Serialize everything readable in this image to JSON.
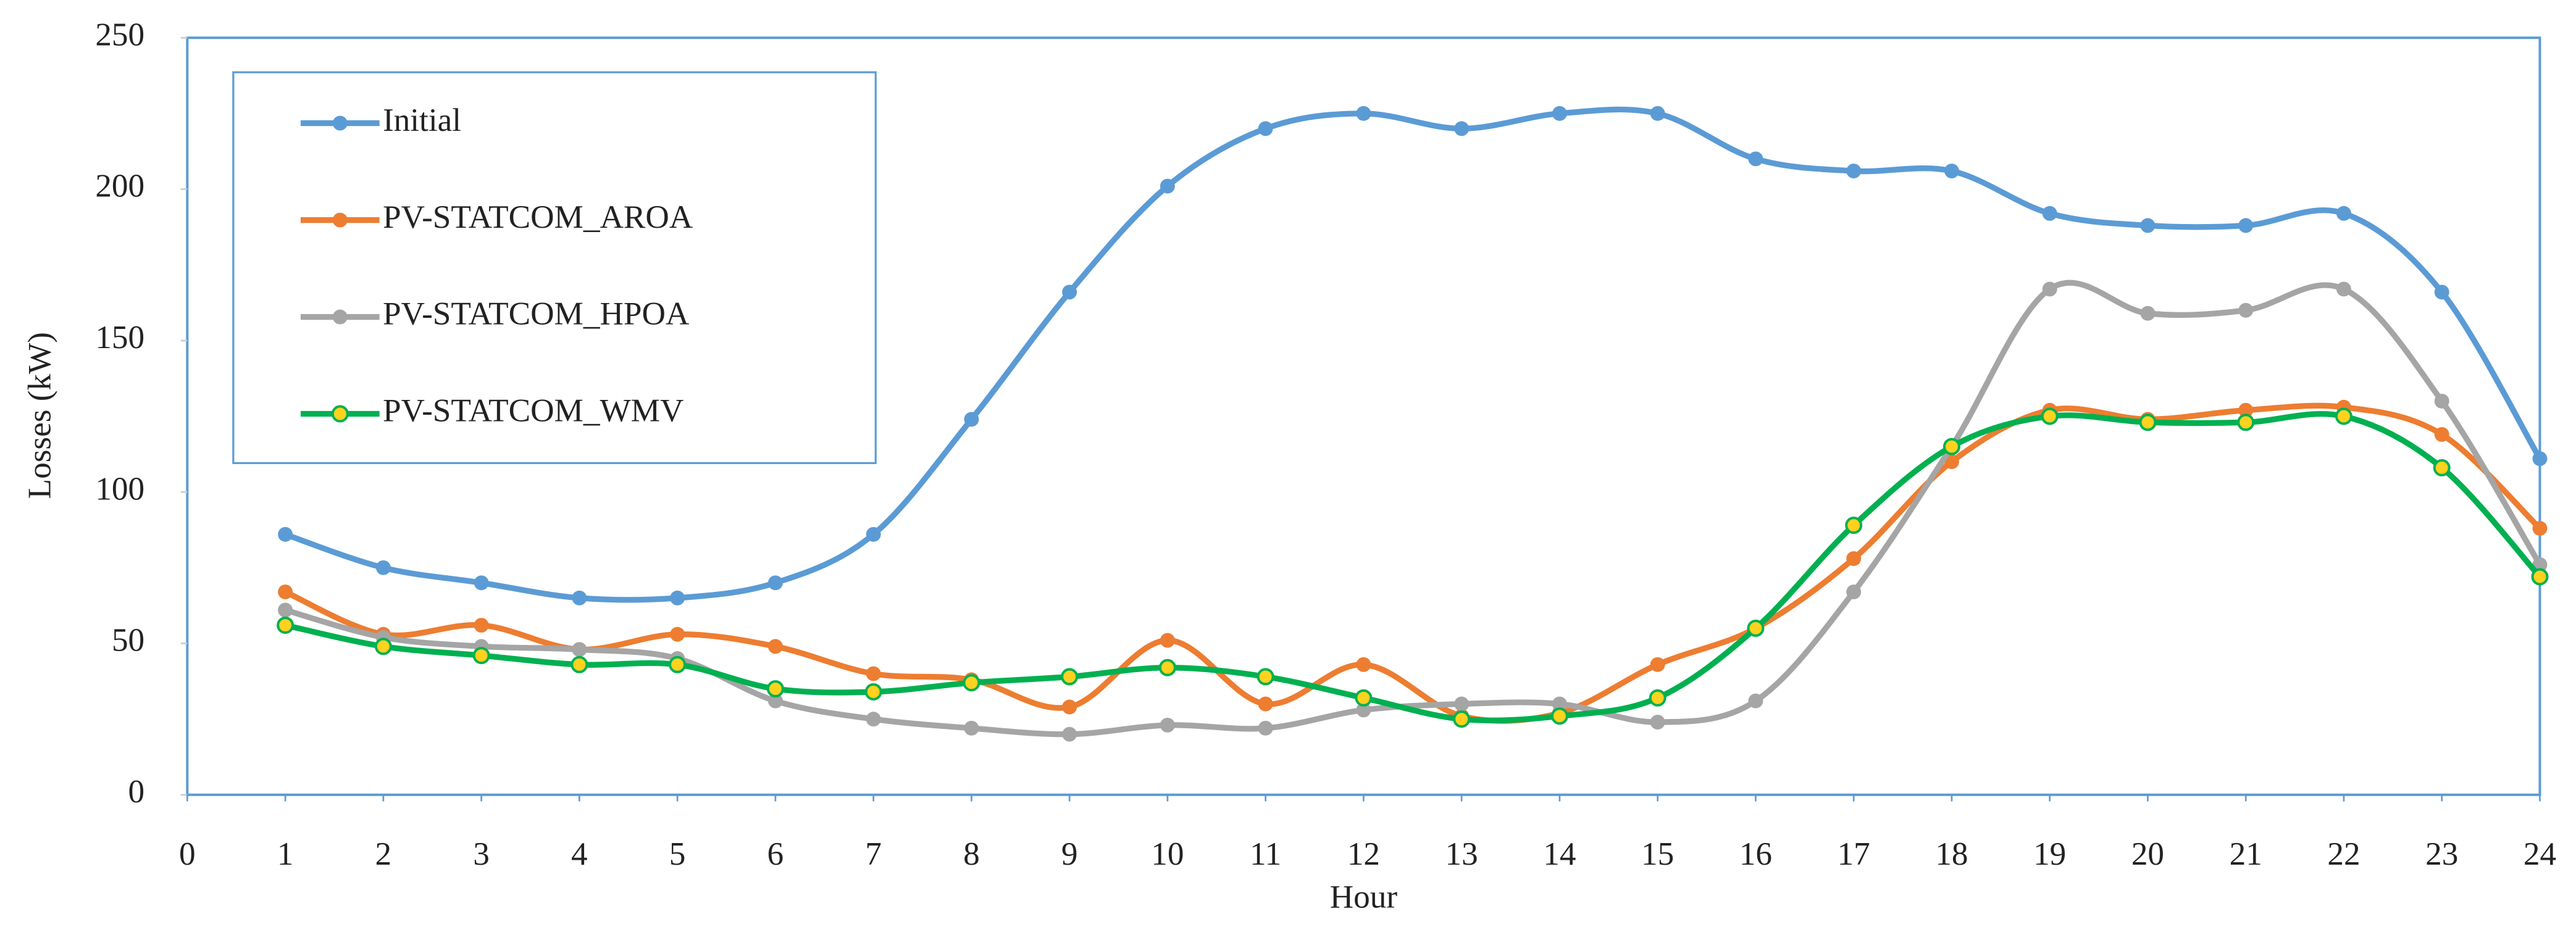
{
  "chart_data": {
    "type": "line",
    "x_label": "Hour",
    "y_label": "Losses (kW)",
    "x": [
      1,
      2,
      3,
      4,
      5,
      6,
      7,
      8,
      9,
      10,
      11,
      12,
      13,
      14,
      15,
      16,
      17,
      18,
      19,
      20,
      21,
      22,
      23,
      24
    ],
    "xlim": [
      0,
      24
    ],
    "xticks": [
      0,
      1,
      2,
      3,
      4,
      5,
      6,
      7,
      8,
      9,
      10,
      11,
      12,
      13,
      14,
      15,
      16,
      17,
      18,
      19,
      20,
      21,
      22,
      23,
      24
    ],
    "ylim": [
      0,
      250
    ],
    "yticks": [
      0,
      50,
      100,
      150,
      200,
      250
    ],
    "grid": false,
    "smooth": true,
    "legend": "upper left",
    "series": [
      {
        "name": "Initial",
        "color": "#5b9bd5",
        "values": [
          86,
          75,
          70,
          65,
          65,
          70,
          86,
          124,
          166,
          201,
          220,
          225,
          220,
          225,
          225,
          210,
          206,
          206,
          192,
          188,
          188,
          192,
          166,
          111
        ]
      },
      {
        "name": "PV-STATCOM_AROA",
        "color": "#ed7d31",
        "values": [
          67,
          53,
          56,
          48,
          53,
          49,
          40,
          38,
          29,
          51,
          30,
          43,
          26,
          27,
          43,
          55,
          78,
          110,
          127,
          124,
          127,
          128,
          119,
          88
        ]
      },
      {
        "name": "PV-STATCOM_HPOA",
        "color": "#a5a5a5",
        "values": [
          61,
          52,
          49,
          48,
          45,
          31,
          25,
          22,
          20,
          23,
          22,
          28,
          30,
          30,
          24,
          31,
          67,
          115,
          167,
          159,
          160,
          167,
          130,
          76
        ]
      },
      {
        "name": "PV-STATCOM_WMV",
        "color": "#00b050",
        "marker_color": "#ffd21f",
        "values": [
          56,
          49,
          46,
          43,
          43,
          35,
          34,
          37,
          39,
          42,
          39,
          32,
          25,
          26,
          32,
          55,
          89,
          115,
          125,
          123,
          123,
          125,
          108,
          72
        ]
      }
    ]
  }
}
